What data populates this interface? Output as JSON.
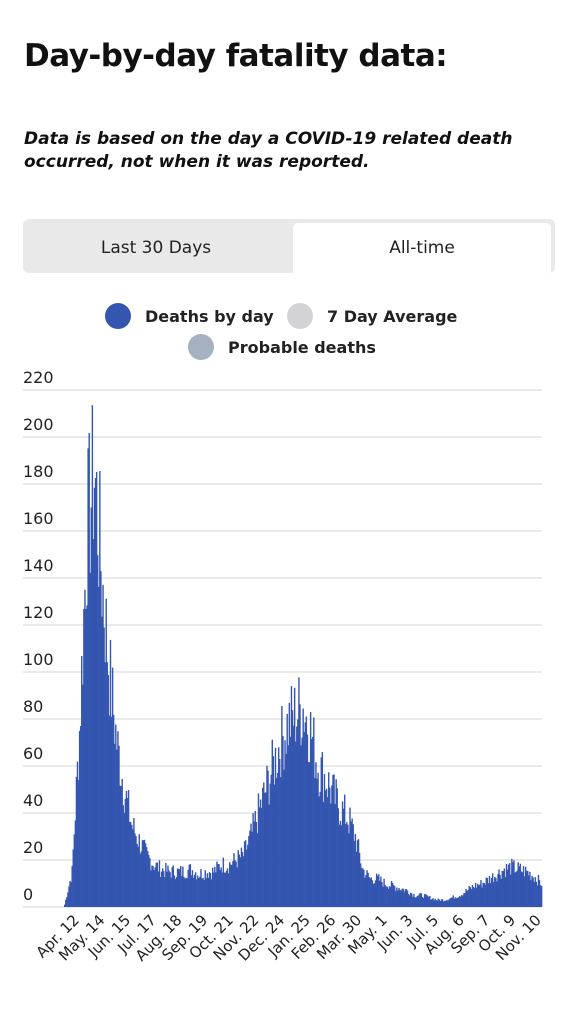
{
  "title": "Day-by-day fatality data:",
  "note": "Data is based on the day a COVID-19 related death occurred, not when it was reported.",
  "tabs": [
    {
      "label": "Last 30 Days",
      "active": false
    },
    {
      "label": "All-time",
      "active": true
    }
  ],
  "legend": [
    {
      "label": "Deaths by day",
      "color": "#3556b0"
    },
    {
      "label": "7 Day Average",
      "color": "#d3d3d6"
    },
    {
      "label": "Probable deaths",
      "color": "#a5b0c0"
    }
  ],
  "chart_data": {
    "type": "bar",
    "title": "",
    "xlabel": "",
    "ylabel": "",
    "ylim": [
      0,
      220
    ],
    "yticks": [
      0,
      20,
      40,
      60,
      80,
      100,
      120,
      140,
      160,
      180,
      200,
      220
    ],
    "grid": true,
    "bar_color": "#3556b0",
    "x_tick_labels": [
      "Apr. 12",
      "May. 14",
      "Jun. 15",
      "Jul. 17",
      "Aug. 18",
      "Sep. 19",
      "Oct. 21",
      "Nov. 22",
      "Dec. 24",
      "Jan. 25",
      "Feb. 26",
      "Mar. 30",
      "May. 1",
      "Jun. 3",
      "Jul. 5",
      "Aug. 6",
      "Sep. 7",
      "Oct. 9",
      "Nov. 10"
    ],
    "series": [
      {
        "name": "Deaths by day",
        "interval_days": 7,
        "weekly_values": [
          1,
          15,
          75,
          160,
          185,
          140,
          100,
          70,
          50,
          35,
          28,
          22,
          18,
          16,
          15,
          15,
          15,
          16,
          14,
          15,
          15,
          18,
          18,
          20,
          22,
          30,
          40,
          50,
          60,
          70,
          78,
          82,
          85,
          75,
          60,
          55,
          48,
          42,
          38,
          30,
          16,
          12,
          12,
          10,
          9,
          8,
          7,
          5,
          5,
          4,
          3,
          3,
          4,
          5,
          7,
          9,
          10,
          12,
          14,
          16,
          17,
          16,
          15,
          13,
          10
        ]
      }
    ]
  }
}
